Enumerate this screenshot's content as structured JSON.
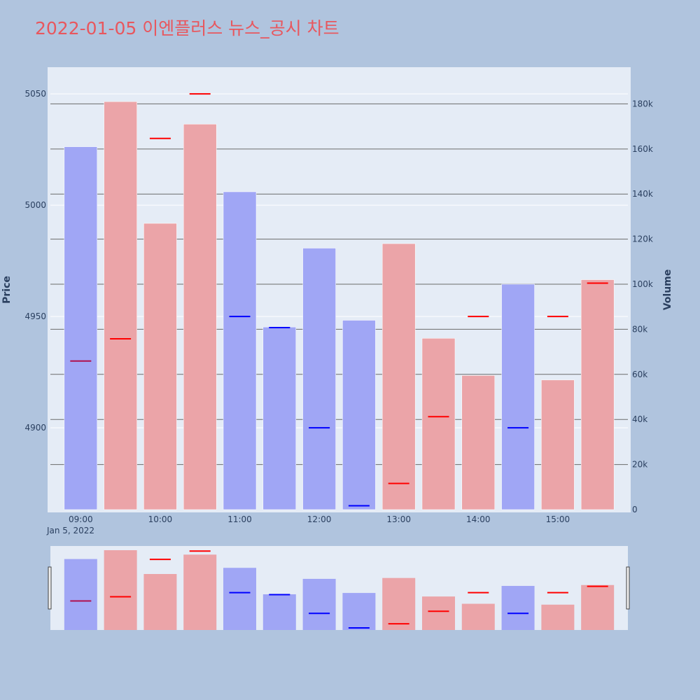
{
  "chart_data": {
    "type": "bar",
    "title": "2022-01-05 이엔플러스 뉴스_공시 차트",
    "title_color": "#e8575e",
    "date_label": "Jan 5, 2022",
    "x_tick_labels": [
      "09:00",
      "10:00",
      "11:00",
      "12:00",
      "13:00",
      "14:00",
      "15:00"
    ],
    "x_ticks_minutes": [
      540,
      600,
      660,
      720,
      780,
      840,
      900
    ],
    "bar_times": [
      "09:00",
      "09:30",
      "10:00",
      "10:30",
      "11:00",
      "11:30",
      "12:00",
      "12:30",
      "13:00",
      "13:30",
      "14:00",
      "14:30",
      "15:00",
      "15:30"
    ],
    "bar_minutes": [
      540,
      570,
      600,
      630,
      660,
      690,
      720,
      750,
      780,
      810,
      840,
      870,
      900,
      930
    ],
    "x_range_minutes": [
      515,
      955
    ],
    "y_left": {
      "label": "Price",
      "ticks": [
        4900,
        4950,
        5000,
        5050
      ],
      "range": [
        4862,
        5062
      ]
    },
    "y_right": {
      "label": "Volume",
      "ticks": [
        0,
        20000,
        40000,
        60000,
        80000,
        100000,
        120000,
        140000,
        160000,
        180000
      ],
      "tick_labels": [
        "0",
        "20k",
        "40k",
        "60k",
        "80k",
        "100k",
        "120k",
        "140k",
        "160k",
        "180k"
      ],
      "range": [
        0,
        191000
      ]
    },
    "series": [
      {
        "name": "Volume",
        "values": [
          161000,
          181000,
          127000,
          171000,
          141000,
          81000,
          116000,
          84000,
          118000,
          76000,
          59500,
          100000,
          57500,
          102000
        ],
        "directions": [
          "down",
          "up",
          "up",
          "up",
          "down",
          "down",
          "down",
          "down",
          "up",
          "up",
          "up",
          "down",
          "up",
          "up"
        ]
      },
      {
        "name": "Price",
        "values": [
          4930,
          4940,
          5030,
          5050,
          4950,
          4945,
          4900,
          4865,
          4875,
          4905,
          4950,
          4900,
          4950,
          4965
        ],
        "directions": [
          "down",
          "up",
          "up",
          "up",
          "down",
          "down",
          "down",
          "down",
          "up",
          "up",
          "up",
          "down",
          "up",
          "up"
        ]
      }
    ],
    "colors": {
      "up_bar": "#eba4a8",
      "down_bar": "#a0a6f5",
      "up_line": "#ff0000",
      "down_line": "#0000ff",
      "first_line": "#b0104e",
      "plot_bg": "#e5ecf6",
      "paper_bg": "#b0c4de",
      "axis_text": "#2a3f5f"
    },
    "grid": true,
    "legend": "none",
    "range_slider": true
  }
}
